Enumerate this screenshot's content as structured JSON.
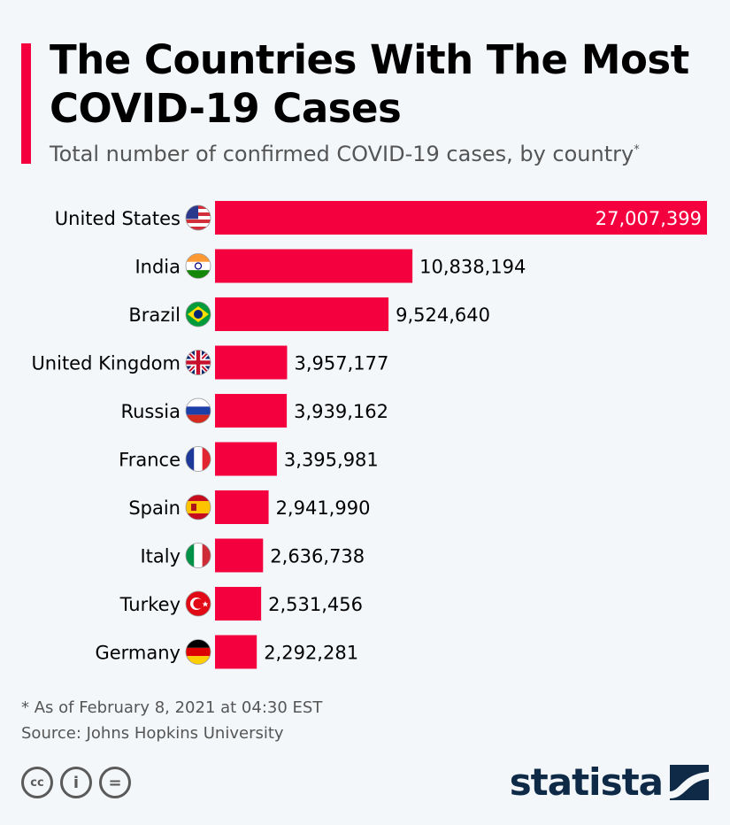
{
  "header": {
    "title": "The Countries With The Most COVID-19 Cases",
    "subtitle": "Total number of confirmed COVID-19 cases, by country",
    "subtitle_marker": "*"
  },
  "chart_data": {
    "type": "bar",
    "orientation": "horizontal",
    "categories": [
      "United States",
      "India",
      "Brazil",
      "United Kingdom",
      "Russia",
      "France",
      "Spain",
      "Italy",
      "Turkey",
      "Germany"
    ],
    "values": [
      27007399,
      10838194,
      9524640,
      3957177,
      3939162,
      3395981,
      2941990,
      2636738,
      2531456,
      2292281
    ],
    "data_labels": [
      "27,007,399",
      "10,838,194",
      "9,524,640",
      "3,957,177",
      "3,939,162",
      "3,395,981",
      "2,941,990",
      "2,636,738",
      "2,531,456",
      "2,292,281"
    ],
    "flags": [
      "us",
      "in",
      "br",
      "gb",
      "ru",
      "fr",
      "es",
      "it",
      "tr",
      "de"
    ],
    "bar_color": "#f5003f",
    "xlim": [
      0,
      27007399
    ],
    "grid": false,
    "legend": "none"
  },
  "footer": {
    "note": "* As of February 8, 2021 at 04:30 EST",
    "source": "Source: Johns Hopkins University",
    "license_icons": [
      "cc-icon",
      "attribution-icon",
      "no-derivatives-icon"
    ],
    "license_labels": [
      "cc",
      "i",
      "="
    ],
    "brand": "statista"
  },
  "colors": {
    "accent": "#f5003f",
    "brand": "#0e2a47",
    "text": "#000000",
    "muted": "#555555",
    "background": "#f3f7fa"
  }
}
